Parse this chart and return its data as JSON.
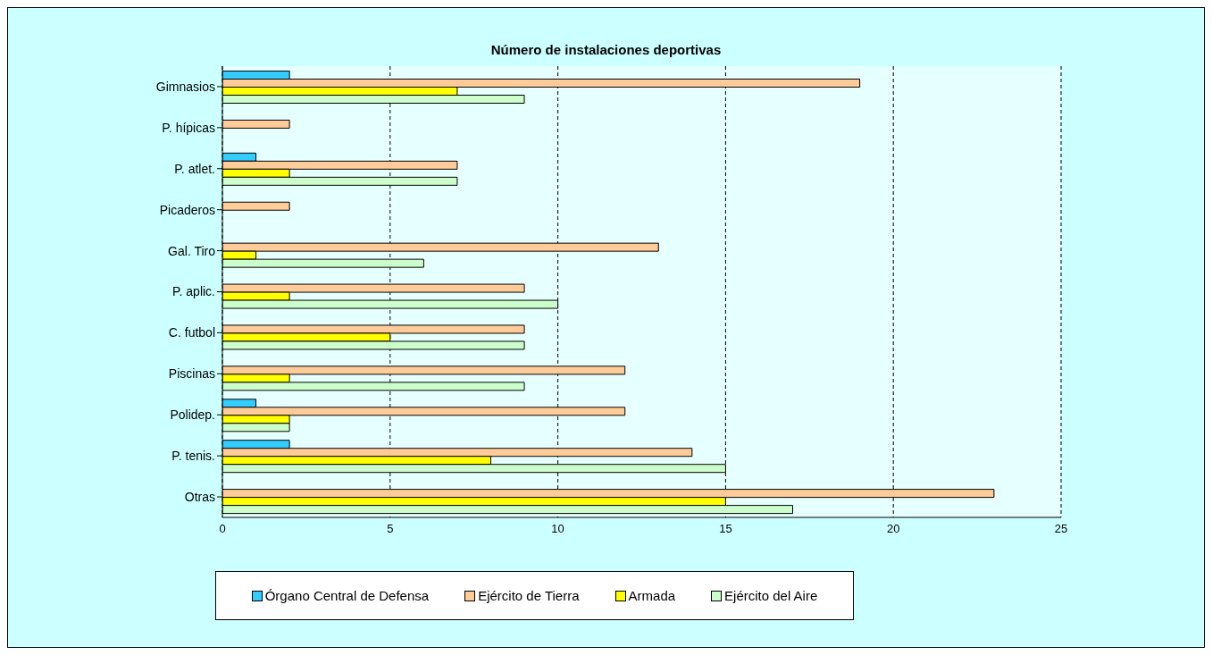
{
  "chart_data": {
    "type": "bar",
    "orientation": "horizontal",
    "title": "Número de instalaciones deportivas",
    "categories": [
      "Gimnasios",
      "P. hípicas",
      "P. atlet.",
      "Picaderos",
      "Gal. Tiro",
      "P. aplic.",
      "C. futbol",
      "Piscinas",
      "Polidep.",
      "P. tenis.",
      "Otras"
    ],
    "series": [
      {
        "name": "Órgano Central de Defensa",
        "color": "#33ccff",
        "values": [
          2,
          0,
          1,
          0,
          0,
          0,
          0,
          0,
          1,
          2,
          0
        ]
      },
      {
        "name": "Ejército de Tierra",
        "color": "#ffcc99",
        "values": [
          19,
          2,
          7,
          2,
          13,
          9,
          9,
          12,
          12,
          14,
          23
        ]
      },
      {
        "name": "Armada",
        "color": "#ffff00",
        "values": [
          7,
          0,
          2,
          0,
          1,
          2,
          5,
          2,
          2,
          8,
          15
        ]
      },
      {
        "name": "Ejército del Aire",
        "color": "#ccffcc",
        "values": [
          9,
          0,
          7,
          0,
          6,
          10,
          9,
          9,
          2,
          15,
          17
        ]
      }
    ],
    "xlim": [
      0,
      25
    ],
    "xticks": [
      0,
      5,
      10,
      15,
      20,
      25
    ],
    "grid": "x",
    "legend": "bottom"
  }
}
